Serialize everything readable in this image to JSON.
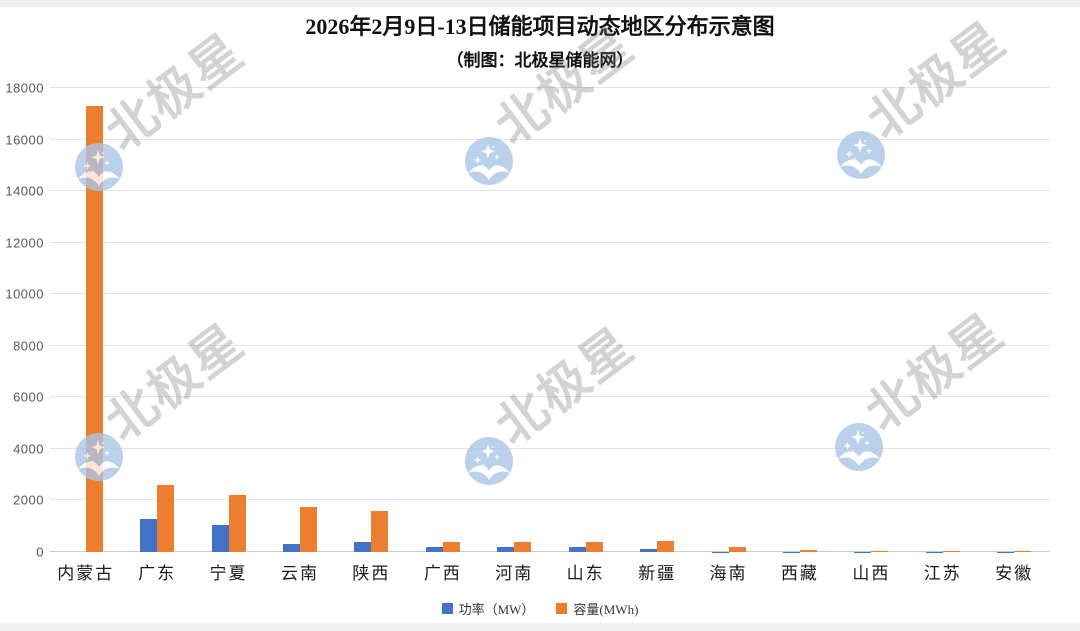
{
  "page": {
    "watermark_text": "北极星"
  },
  "chart_data": {
    "type": "bar",
    "title": "2026年2月9日-13日储能项目动态地区分布示意图",
    "subtitle": "（制图：北极星储能网）",
    "categories": [
      "内蒙古",
      "广东",
      "宁夏",
      "云南",
      "陕西",
      "广西",
      "河南",
      "山东",
      "新疆",
      "海南",
      "西藏",
      "山西",
      "江苏",
      "安徽"
    ],
    "series": [
      {
        "name": "功率（MW）",
        "color": "#4472C4",
        "values": [
          0,
          1300,
          1050,
          330,
          380,
          200,
          180,
          200,
          100,
          20,
          10,
          10,
          10,
          10
        ]
      },
      {
        "name": "容量(MWh)",
        "color": "#ED7D31",
        "values": [
          17300,
          2600,
          2200,
          1750,
          1600,
          400,
          380,
          400,
          420,
          200,
          90,
          50,
          50,
          50
        ]
      }
    ],
    "xlabel": "",
    "ylabel": "",
    "ylim": [
      0,
      18000
    ],
    "yticks": [
      0,
      2000,
      4000,
      6000,
      8000,
      10000,
      12000,
      14000,
      16000,
      18000
    ],
    "grid": true,
    "legend_position": "bottom"
  }
}
